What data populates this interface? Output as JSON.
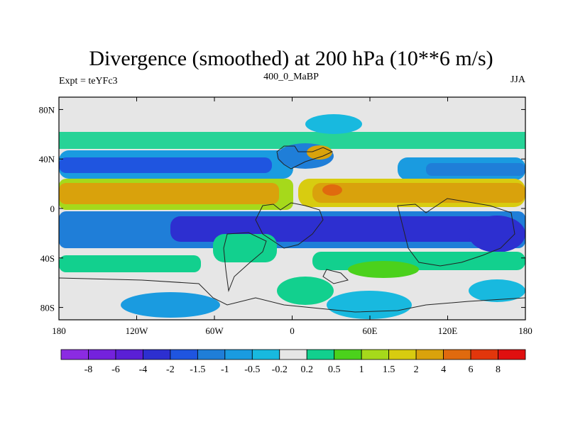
{
  "chart_data": {
    "type": "heatmap",
    "title": "Divergence (smoothed) at 200 hPa (10**6 m/s)",
    "subtitle_left": "Expt = teYFc3",
    "subtitle_center": "400_0_MaBP",
    "subtitle_right": "JJA",
    "x_ticks": [
      "180",
      "120W",
      "60W",
      "0",
      "60E",
      "120E",
      "180"
    ],
    "x_tick_lon": [
      -180,
      -120,
      -60,
      0,
      60,
      120,
      180
    ],
    "y_ticks": [
      "80N",
      "40N",
      "0",
      "40S",
      "80S"
    ],
    "y_tick_lat": [
      80,
      40,
      0,
      -40,
      -80
    ],
    "xlim": [
      -180,
      180
    ],
    "ylim": [
      -90,
      90
    ],
    "colorbar": {
      "labels": [
        "-8",
        "-6",
        "-4",
        "-2",
        "-1.5",
        "-1",
        "-0.5",
        "-0.2",
        "0.2",
        "0.5",
        "1",
        "1.5",
        "2",
        "4",
        "6",
        "8"
      ],
      "colors": [
        "#8b2be2",
        "#7422dc",
        "#5a1fd6",
        "#2d2fd0",
        "#1f55e0",
        "#1f7ed8",
        "#1a9be0",
        "#18b9df",
        "#e6e6e6",
        "#12d08e",
        "#4bd11c",
        "#a6d91b",
        "#d8cc10",
        "#d9a20c",
        "#e06a0e",
        "#e2360c",
        "#e01010"
      ]
    },
    "bands": [
      {
        "lat": 50,
        "value": 0.5
      },
      {
        "lat": 30,
        "value": -1.5
      },
      {
        "lat": 8,
        "value": 2
      },
      {
        "lat": -20,
        "value": -2
      },
      {
        "lat": -45,
        "value": 0.5
      },
      {
        "lat": -75,
        "value": -0.5
      }
    ]
  }
}
